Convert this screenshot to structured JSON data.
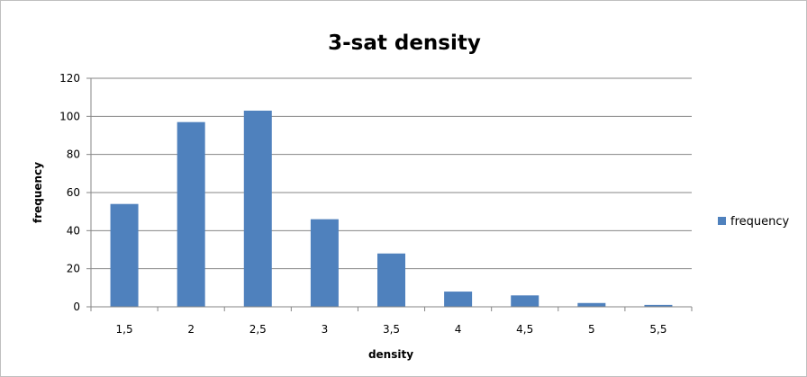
{
  "chart_data": {
    "type": "bar",
    "title": "3-sat density",
    "xlabel": "density",
    "ylabel": "frequency",
    "categories": [
      "1,5",
      "2",
      "2,5",
      "3",
      "3,5",
      "4",
      "4,5",
      "5",
      "5,5"
    ],
    "series": [
      {
        "name": "frequency",
        "values": [
          54,
          97,
          103,
          46,
          28,
          8,
          6,
          2,
          1
        ]
      }
    ],
    "ylim": [
      0,
      120
    ],
    "yticks": [
      "0",
      "20",
      "40",
      "60",
      "80",
      "100",
      "120"
    ],
    "grid": true,
    "legend": "right",
    "colors": {
      "bar": "#4f81bd",
      "grid": "#868686",
      "axis": "#868686"
    }
  }
}
